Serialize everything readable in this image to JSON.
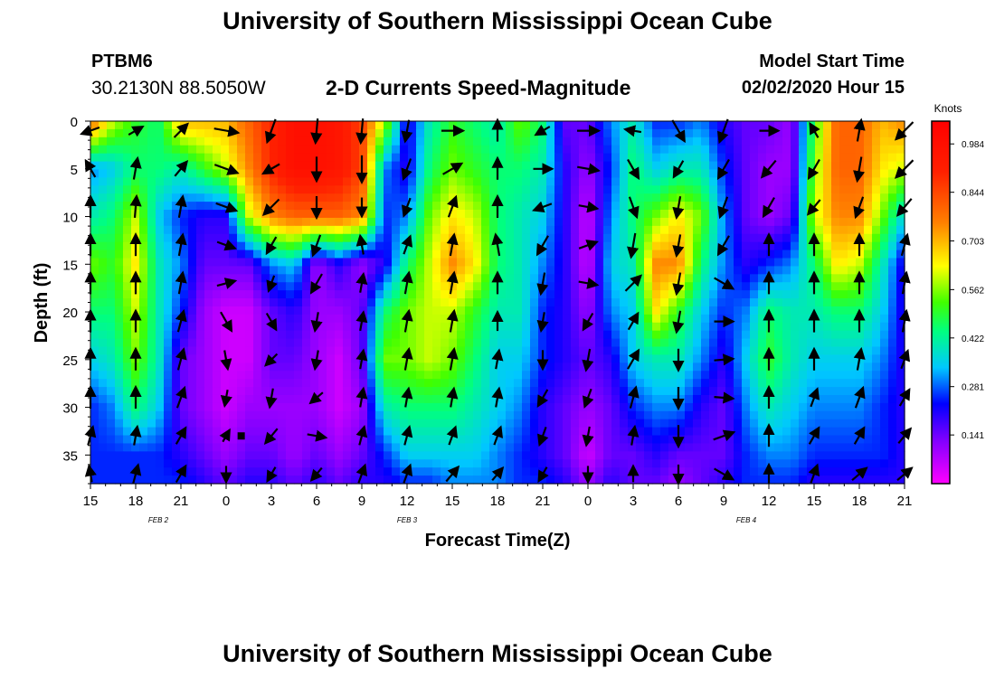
{
  "header": {
    "title": "University of Southern Mississippi Ocean Cube",
    "station_id": "PTBM6",
    "station_coords": "30.2130N 88.5050W",
    "plot_title": "2-D Currents Speed-Magnitude",
    "model_start_label": "Model Start Time",
    "model_start_value": "02/02/2020 Hour 15"
  },
  "footer": {
    "title": "University of Southern Mississippi Ocean Cube"
  },
  "colors": [
    "#ff00ff",
    "#8000ff",
    "#0000ff",
    "#00c8ff",
    "#00ff80",
    "#40ff00",
    "#ffff00",
    "#ff8000",
    "#ff2000",
    "#ff0000"
  ],
  "chart_data": {
    "type": "heatmap",
    "xlabel": "Forecast Time(Z)",
    "ylabel": "Depth (ft)",
    "x_tick_labels": [
      "15",
      "18",
      "21",
      "0",
      "3",
      "6",
      "9",
      "12",
      "15",
      "18",
      "21",
      "0",
      "3",
      "6",
      "9",
      "12",
      "15",
      "18",
      "21"
    ],
    "x_hours": [
      0,
      3,
      6,
      9,
      12,
      15,
      18,
      21,
      24,
      27,
      30,
      33,
      36,
      39,
      42,
      45,
      48,
      51,
      54
    ],
    "xlim": [
      0,
      54
    ],
    "date_labels": [
      {
        "label": "FEB 2",
        "x_hour": 4.5
      },
      {
        "label": "FEB 3",
        "x_hour": 21
      },
      {
        "label": "FEB 4",
        "x_hour": 43.5
      }
    ],
    "y_ticks": [
      0,
      5,
      10,
      15,
      20,
      25,
      30,
      35
    ],
    "ylim": [
      0,
      38
    ],
    "y_inverted": true,
    "colorbar": {
      "title": "Knots",
      "tick_labels": [
        "0.141",
        "0.281",
        "0.422",
        "0.562",
        "0.703",
        "0.844",
        "0.984"
      ],
      "tick_values": [
        0.141,
        0.281,
        0.422,
        0.562,
        0.703,
        0.844,
        0.984
      ],
      "range": [
        0,
        1.05
      ]
    },
    "depths": [
      0,
      5,
      10,
      15,
      20,
      25,
      30,
      35,
      38
    ],
    "columns": [
      {
        "h": 0,
        "v": [
          0.8,
          0.3,
          0.4,
          0.55,
          0.45,
          0.35,
          0.25,
          0.25,
          0.25
        ]
      },
      {
        "h": 1.5,
        "v": [
          0.6,
          0.35,
          0.45,
          0.5,
          0.45,
          0.4,
          0.3,
          0.25,
          0.25
        ]
      },
      {
        "h": 3,
        "v": [
          0.5,
          0.45,
          0.6,
          0.65,
          0.6,
          0.55,
          0.45,
          0.25,
          0.25
        ]
      },
      {
        "h": 4.5,
        "v": [
          0.45,
          0.45,
          0.35,
          0.4,
          0.4,
          0.4,
          0.35,
          0.25,
          0.25
        ]
      },
      {
        "h": 6,
        "v": [
          0.7,
          0.4,
          0.25,
          0.3,
          0.25,
          0.15,
          0.15,
          0.2,
          0.25
        ]
      },
      {
        "h": 7.5,
        "v": [
          0.7,
          0.5,
          0.2,
          0.15,
          0.1,
          0.1,
          0.1,
          0.15,
          0.2
        ]
      },
      {
        "h": 9,
        "v": [
          0.7,
          0.6,
          0.2,
          0.15,
          0.05,
          0.05,
          0.05,
          0.1,
          0.15
        ]
      },
      {
        "h": 10.5,
        "v": [
          0.8,
          0.75,
          0.6,
          0.15,
          0.05,
          0.05,
          0.1,
          0.15,
          0.2
        ]
      },
      {
        "h": 12,
        "v": [
          0.9,
          0.9,
          0.75,
          0.3,
          0.15,
          0.15,
          0.1,
          0.15,
          0.2
        ]
      },
      {
        "h": 13.5,
        "v": [
          0.98,
          0.98,
          0.8,
          0.35,
          0.2,
          0.15,
          0.1,
          0.1,
          0.15
        ]
      },
      {
        "h": 15,
        "v": [
          0.98,
          0.98,
          0.8,
          0.1,
          0.1,
          0.1,
          0.1,
          0.15,
          0.2
        ]
      },
      {
        "h": 16.5,
        "v": [
          0.95,
          0.95,
          0.8,
          0.2,
          0.1,
          0.05,
          0.05,
          0.1,
          0.15
        ]
      },
      {
        "h": 18,
        "v": [
          0.85,
          0.85,
          0.75,
          0.1,
          0.15,
          0.15,
          0.1,
          0.15,
          0.2
        ]
      },
      {
        "h": 19.5,
        "v": [
          0.6,
          0.3,
          0.25,
          0.2,
          0.45,
          0.55,
          0.4,
          0.25,
          0.2
        ]
      },
      {
        "h": 21,
        "v": [
          0.2,
          0.2,
          0.3,
          0.45,
          0.55,
          0.55,
          0.45,
          0.35,
          0.25
        ]
      },
      {
        "h": 22.5,
        "v": [
          0.4,
          0.45,
          0.55,
          0.6,
          0.6,
          0.6,
          0.45,
          0.35,
          0.25
        ]
      },
      {
        "h": 24,
        "v": [
          0.5,
          0.55,
          0.65,
          0.75,
          0.6,
          0.55,
          0.45,
          0.35,
          0.3
        ]
      },
      {
        "h": 25.5,
        "v": [
          0.45,
          0.5,
          0.6,
          0.65,
          0.5,
          0.45,
          0.4,
          0.35,
          0.3
        ]
      },
      {
        "h": 27,
        "v": [
          0.4,
          0.45,
          0.45,
          0.45,
          0.4,
          0.35,
          0.35,
          0.3,
          0.3
        ]
      },
      {
        "h": 28.5,
        "v": [
          0.55,
          0.45,
          0.4,
          0.4,
          0.4,
          0.35,
          0.3,
          0.25,
          0.25
        ]
      },
      {
        "h": 30,
        "v": [
          0.45,
          0.4,
          0.35,
          0.3,
          0.25,
          0.25,
          0.2,
          0.2,
          0.25
        ]
      },
      {
        "h": 31.5,
        "v": [
          0.15,
          0.2,
          0.2,
          0.2,
          0.2,
          0.2,
          0.15,
          0.15,
          0.2
        ]
      },
      {
        "h": 33,
        "v": [
          0.15,
          0.1,
          0.05,
          0.05,
          0.1,
          0.15,
          0.1,
          0.05,
          0.1
        ]
      },
      {
        "h": 34.5,
        "v": [
          0.3,
          0.25,
          0.3,
          0.35,
          0.3,
          0.2,
          0.15,
          0.15,
          0.2
        ]
      },
      {
        "h": 36,
        "v": [
          0.4,
          0.45,
          0.45,
          0.4,
          0.35,
          0.35,
          0.25,
          0.15,
          0.15
        ]
      },
      {
        "h": 37.5,
        "v": [
          0.25,
          0.35,
          0.55,
          0.75,
          0.65,
          0.4,
          0.3,
          0.2,
          0.15
        ]
      },
      {
        "h": 39,
        "v": [
          0.25,
          0.4,
          0.65,
          0.75,
          0.5,
          0.4,
          0.3,
          0.15,
          0.1
        ]
      },
      {
        "h": 40.5,
        "v": [
          0.3,
          0.4,
          0.55,
          0.45,
          0.35,
          0.3,
          0.2,
          0.15,
          0.15
        ]
      },
      {
        "h": 42,
        "v": [
          0.2,
          0.25,
          0.3,
          0.3,
          0.25,
          0.2,
          0.15,
          0.15,
          0.2
        ]
      },
      {
        "h": 43.5,
        "v": [
          0.15,
          0.15,
          0.15,
          0.2,
          0.3,
          0.35,
          0.3,
          0.25,
          0.25
        ]
      },
      {
        "h": 45,
        "v": [
          0.15,
          0.1,
          0.1,
          0.25,
          0.45,
          0.5,
          0.4,
          0.3,
          0.25
        ]
      },
      {
        "h": 46.5,
        "v": [
          0.1,
          0.1,
          0.15,
          0.3,
          0.4,
          0.4,
          0.35,
          0.3,
          0.25
        ]
      },
      {
        "h": 48,
        "v": [
          0.5,
          0.55,
          0.6,
          0.45,
          0.4,
          0.35,
          0.3,
          0.25,
          0.2
        ]
      },
      {
        "h": 49.5,
        "v": [
          0.8,
          0.8,
          0.75,
          0.65,
          0.45,
          0.35,
          0.3,
          0.25,
          0.2
        ]
      },
      {
        "h": 51,
        "v": [
          0.8,
          0.8,
          0.75,
          0.6,
          0.45,
          0.35,
          0.3,
          0.25,
          0.2
        ]
      },
      {
        "h": 52.5,
        "v": [
          0.7,
          0.65,
          0.55,
          0.4,
          0.35,
          0.3,
          0.25,
          0.25,
          0.2
        ]
      },
      {
        "h": 54,
        "v": [
          0.75,
          0.6,
          0.35,
          0.2,
          0.2,
          0.2,
          0.2,
          0.2,
          0.2
        ]
      }
    ],
    "vector_depths": [
      1,
      5,
      9,
      13,
      17,
      21,
      25,
      29,
      33,
      37
    ],
    "vector_hours": [
      0,
      3,
      6,
      9,
      12,
      15,
      18,
      21,
      24,
      27,
      30,
      33,
      36,
      39,
      42,
      45,
      48,
      51,
      54
    ],
    "vectors": [
      [
        [
          -160,
          0.7
        ],
        [
          120,
          0.7
        ],
        [
          90,
          0.8
        ],
        [
          90,
          0.8
        ],
        [
          90,
          0.8
        ],
        [
          90,
          0.8
        ],
        [
          90,
          0.8
        ],
        [
          90,
          0.8
        ],
        [
          75,
          0.7
        ],
        [
          100,
          0.6
        ]
      ],
      [
        [
          30,
          0.6
        ],
        [
          80,
          0.8
        ],
        [
          85,
          0.8
        ],
        [
          90,
          0.8
        ],
        [
          90,
          0.8
        ],
        [
          90,
          0.8
        ],
        [
          90,
          0.8
        ],
        [
          90,
          0.8
        ],
        [
          80,
          0.7
        ],
        [
          75,
          0.7
        ]
      ],
      [
        [
          45,
          0.7
        ],
        [
          50,
          0.7
        ],
        [
          80,
          0.8
        ],
        [
          80,
          0.8
        ],
        [
          80,
          0.8
        ],
        [
          75,
          0.8
        ],
        [
          75,
          0.8
        ],
        [
          70,
          0.8
        ],
        [
          60,
          0.7
        ],
        [
          60,
          0.7
        ]
      ],
      [
        [
          -10,
          0.9
        ],
        [
          -20,
          0.9
        ],
        [
          -20,
          0.8
        ],
        [
          -20,
          0.7
        ],
        [
          15,
          0.7
        ],
        [
          -60,
          0.8
        ],
        [
          -80,
          0.7
        ],
        [
          -100,
          0.6
        ],
        [
          60,
          0.5
        ],
        [
          -90,
          0.6
        ]
      ],
      [
        [
          -110,
          0.9
        ],
        [
          -150,
          0.7
        ],
        [
          -135,
          0.8
        ],
        [
          -120,
          0.7
        ],
        [
          -110,
          0.6
        ],
        [
          -60,
          0.7
        ],
        [
          -135,
          0.6
        ],
        [
          -100,
          0.7
        ],
        [
          -130,
          0.7
        ],
        [
          -120,
          0.6
        ]
      ],
      [
        [
          -95,
          0.9
        ],
        [
          -90,
          0.9
        ],
        [
          -90,
          0.8
        ],
        [
          -110,
          0.8
        ],
        [
          -120,
          0.8
        ],
        [
          -100,
          0.7
        ],
        [
          -100,
          0.7
        ],
        [
          -140,
          0.6
        ],
        [
          -10,
          0.7
        ],
        [
          -130,
          0.6
        ]
      ],
      [
        [
          -95,
          0.9
        ],
        [
          -90,
          1.0
        ],
        [
          -90,
          0.7
        ],
        [
          100,
          0.7
        ],
        [
          80,
          0.7
        ],
        [
          80,
          0.7
        ],
        [
          80,
          0.7
        ],
        [
          80,
          0.7
        ],
        [
          75,
          0.7
        ],
        [
          70,
          0.7
        ]
      ],
      [
        [
          -100,
          0.8
        ],
        [
          -110,
          0.8
        ],
        [
          -110,
          0.7
        ],
        [
          70,
          0.7
        ],
        [
          80,
          0.8
        ],
        [
          80,
          0.8
        ],
        [
          80,
          0.8
        ],
        [
          80,
          0.7
        ],
        [
          75,
          0.7
        ],
        [
          70,
          0.7
        ]
      ],
      [
        [
          0,
          0.8
        ],
        [
          30,
          0.8
        ],
        [
          70,
          0.8
        ],
        [
          80,
          0.8
        ],
        [
          80,
          0.8
        ],
        [
          80,
          0.8
        ],
        [
          80,
          0.8
        ],
        [
          80,
          0.7
        ],
        [
          70,
          0.7
        ],
        [
          50,
          0.7
        ]
      ],
      [
        [
          90,
          0.8
        ],
        [
          90,
          0.8
        ],
        [
          90,
          0.8
        ],
        [
          100,
          0.8
        ],
        [
          90,
          0.8
        ],
        [
          90,
          0.7
        ],
        [
          80,
          0.7
        ],
        [
          80,
          0.7
        ],
        [
          70,
          0.7
        ],
        [
          50,
          0.6
        ]
      ],
      [
        [
          -150,
          0.6
        ],
        [
          0,
          0.7
        ],
        [
          -160,
          0.7
        ],
        [
          -120,
          0.8
        ],
        [
          -100,
          0.8
        ],
        [
          -100,
          0.7
        ],
        [
          -90,
          0.7
        ],
        [
          -120,
          0.7
        ],
        [
          -110,
          0.7
        ],
        [
          -120,
          0.6
        ]
      ],
      [
        [
          0,
          0.8
        ],
        [
          -10,
          0.8
        ],
        [
          -10,
          0.7
        ],
        [
          20,
          0.7
        ],
        [
          -10,
          0.7
        ],
        [
          -120,
          0.7
        ],
        [
          -100,
          0.8
        ],
        [
          -110,
          0.7
        ],
        [
          -100,
          0.7
        ],
        [
          -90,
          0.6
        ]
      ],
      [
        [
          170,
          0.6
        ],
        [
          -60,
          0.8
        ],
        [
          -70,
          0.8
        ],
        [
          -100,
          0.9
        ],
        [
          45,
          0.8
        ],
        [
          60,
          0.7
        ],
        [
          60,
          0.8
        ],
        [
          75,
          0.8
        ],
        [
          80,
          0.7
        ],
        [
          90,
          0.6
        ]
      ],
      [
        [
          -60,
          0.9
        ],
        [
          -120,
          0.7
        ],
        [
          -100,
          0.8
        ],
        [
          -100,
          0.8
        ],
        [
          -100,
          0.8
        ],
        [
          -100,
          0.8
        ],
        [
          -90,
          0.8
        ],
        [
          -90,
          0.8
        ],
        [
          -90,
          0.8
        ],
        [
          -90,
          0.7
        ]
      ],
      [
        [
          -110,
          0.9
        ],
        [
          -120,
          0.8
        ],
        [
          -110,
          0.8
        ],
        [
          -120,
          0.8
        ],
        [
          -30,
          0.8
        ],
        [
          0,
          0.7
        ],
        [
          5,
          0.7
        ],
        [
          -5,
          0.7
        ],
        [
          20,
          0.8
        ],
        [
          -30,
          0.8
        ]
      ],
      [
        [
          0,
          0.7
        ],
        [
          -130,
          0.8
        ],
        [
          -120,
          0.8
        ],
        [
          90,
          0.8
        ],
        [
          90,
          0.8
        ],
        [
          90,
          0.8
        ],
        [
          90,
          0.8
        ],
        [
          90,
          0.8
        ],
        [
          90,
          0.8
        ],
        [
          90,
          0.7
        ]
      ],
      [
        [
          120,
          0.6
        ],
        [
          -120,
          0.8
        ],
        [
          -130,
          0.7
        ],
        [
          90,
          0.8
        ],
        [
          90,
          0.8
        ],
        [
          90,
          0.8
        ],
        [
          90,
          0.8
        ],
        [
          70,
          0.7
        ],
        [
          60,
          0.7
        ],
        [
          70,
          0.7
        ]
      ],
      [
        [
          80,
          0.8
        ],
        [
          -100,
          0.9
        ],
        [
          -110,
          0.8
        ],
        [
          90,
          0.8
        ],
        [
          90,
          0.8
        ],
        [
          90,
          0.8
        ],
        [
          80,
          0.8
        ],
        [
          70,
          0.8
        ],
        [
          60,
          0.7
        ],
        [
          40,
          0.7
        ]
      ],
      [
        [
          -135,
          0.9
        ],
        [
          -135,
          0.9
        ],
        [
          -130,
          0.8
        ],
        [
          75,
          0.8
        ],
        [
          80,
          0.8
        ],
        [
          80,
          0.8
        ],
        [
          70,
          0.7
        ],
        [
          60,
          0.7
        ],
        [
          50,
          0.7
        ],
        [
          40,
          0.7
        ]
      ]
    ],
    "marker": {
      "x_hour": 10,
      "depth": 33
    }
  }
}
